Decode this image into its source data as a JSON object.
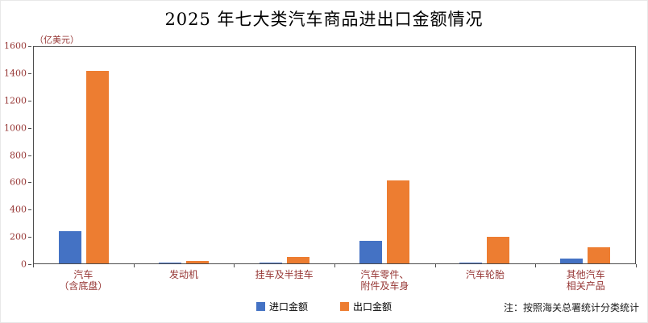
{
  "title": "2025 年七大类汽车商品进出口金额情况",
  "note": "注：按照海关总署统计分类统计",
  "chart_data": {
    "type": "bar",
    "title": "2025 年七大类汽车商品进出口金额情况",
    "ylabel": "（亿美元）",
    "xlabel": "",
    "categories": [
      "汽车\n（含底盘）",
      "发动机",
      "挂车及半挂车",
      "汽车零件、\n附件及车身",
      "汽车轮胎",
      "其他汽车\n相关产品"
    ],
    "series": [
      {
        "name": "进口金额",
        "color": "#4472C4",
        "values": [
          240,
          5,
          3,
          165,
          5,
          35
        ]
      },
      {
        "name": "出口金额",
        "color": "#ED7D31",
        "values": [
          1420,
          20,
          48,
          610,
          195,
          120
        ]
      }
    ],
    "ylim": [
      0,
      1600
    ],
    "ytick_step": 200,
    "yticks": [
      "0",
      "200",
      "400",
      "600",
      "800",
      "1000",
      "1200",
      "1400",
      "1600"
    ],
    "grid": false,
    "legend_position": "bottom",
    "note": "注：按照海关总署统计分类统计"
  }
}
